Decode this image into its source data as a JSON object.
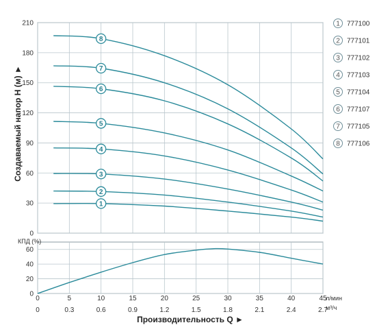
{
  "chart_data": [
    {
      "type": "line",
      "ylabel": "Создаваемый напор H (м) ►",
      "ylim": [
        0,
        210
      ],
      "y_ticks": [
        "0",
        "30",
        "60",
        "90",
        "120",
        "150",
        "180",
        "210"
      ],
      "x_ticks_lmin": [
        "0",
        "5",
        "10",
        "15",
        "20",
        "25",
        "30",
        "35",
        "40",
        "45"
      ],
      "x_ticks_m3h": [
        "0",
        "0.3",
        "0.6",
        "0.9",
        "1.2",
        "1.5",
        "1.8",
        "2.1",
        "2.4",
        "2.7"
      ],
      "x_unit_top": "л/мин",
      "x_unit_bottom": "м³/ч",
      "xlim_lmin": [
        0,
        45
      ],
      "grid": true,
      "line_color": "#2a8a9a",
      "legend_position": "right",
      "series": [
        {
          "name": "777100",
          "marker": "1",
          "x": [
            2.5,
            10,
            20,
            30,
            40,
            45
          ],
          "y": [
            29.5,
            29.5,
            27,
            22,
            16,
            12
          ]
        },
        {
          "name": "777101",
          "marker": "2",
          "x": [
            2.5,
            10,
            20,
            30,
            40,
            45
          ],
          "y": [
            42,
            41.5,
            38,
            31,
            22,
            16
          ]
        },
        {
          "name": "777102",
          "marker": "3",
          "x": [
            2.5,
            10,
            20,
            30,
            40,
            45
          ],
          "y": [
            59.5,
            59,
            54,
            44,
            31,
            23
          ]
        },
        {
          "name": "777103",
          "marker": "4",
          "x": [
            2.5,
            10,
            20,
            30,
            40,
            45
          ],
          "y": [
            85,
            84,
            77,
            63,
            43,
            31
          ]
        },
        {
          "name": "777104",
          "marker": "5",
          "x": [
            2.5,
            10,
            20,
            30,
            40,
            45
          ],
          "y": [
            111.5,
            109.5,
            100,
            83,
            57,
            42
          ]
        },
        {
          "name": "777107",
          "marker": "6",
          "x": [
            2.5,
            10,
            20,
            30,
            40,
            45
          ],
          "y": [
            146.5,
            144,
            132,
            109,
            75,
            52
          ]
        },
        {
          "name": "777105",
          "marker": "7",
          "x": [
            2.5,
            10,
            20,
            30,
            40,
            45
          ],
          "y": [
            167,
            164.5,
            150,
            124,
            85,
            59
          ]
        },
        {
          "name": "777106",
          "marker": "8",
          "x": [
            2.5,
            10,
            20,
            30,
            40,
            45
          ],
          "y": [
            197,
            194,
            177,
            148,
            104,
            74
          ]
        }
      ]
    },
    {
      "type": "line",
      "ylabel": "КПД (%)",
      "ylim": [
        0,
        70
      ],
      "y_ticks": [
        "0",
        "20",
        "40",
        "60"
      ],
      "xlim_lmin": [
        0,
        45
      ],
      "grid": true,
      "line_color": "#2a8a9a",
      "series": [
        {
          "x": [
            0,
            5,
            10,
            15,
            20,
            25,
            28,
            30,
            35,
            40,
            45
          ],
          "y": [
            0,
            15,
            29,
            42,
            53,
            59,
            61,
            60.5,
            56,
            48,
            40
          ]
        }
      ]
    }
  ],
  "x_axis_title": "Производительность Q ►"
}
